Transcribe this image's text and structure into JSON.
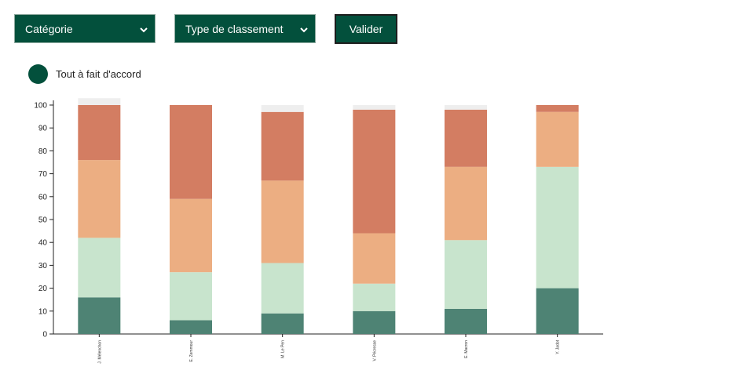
{
  "filters": {
    "category_label": "Catégorie",
    "ranking_type_label": "Type de classement",
    "submit_label": "Valider"
  },
  "legend": {
    "label": "Tout à fait d'accord",
    "color": "#03503c"
  },
  "chart_data": {
    "type": "bar",
    "stacked": true,
    "categories": [
      "J. Mélenchon",
      "E. Zemmour",
      "M. Le Pen",
      "V. Pécresse",
      "E. Macron",
      "Y. Jadot"
    ],
    "series": [
      {
        "color": "#4e8374",
        "values": [
          16,
          6,
          9,
          10,
          11,
          20
        ]
      },
      {
        "color": "#c8e4cd",
        "values": [
          26,
          21,
          22,
          12,
          30,
          53
        ]
      },
      {
        "color": "#ecae82",
        "values": [
          34,
          32,
          36,
          22,
          32,
          24
        ]
      },
      {
        "color": "#d37d62",
        "values": [
          24,
          41,
          30,
          54,
          25,
          3
        ]
      },
      {
        "color": "#eeeeee",
        "values": [
          3,
          0,
          3,
          2,
          2,
          0
        ]
      }
    ],
    "yticks": [
      0,
      10,
      20,
      30,
      40,
      50,
      60,
      70,
      80,
      90,
      100
    ],
    "ylim": [
      0,
      100
    ],
    "xlabel": "",
    "ylabel": "",
    "title": "",
    "grid": false
  }
}
